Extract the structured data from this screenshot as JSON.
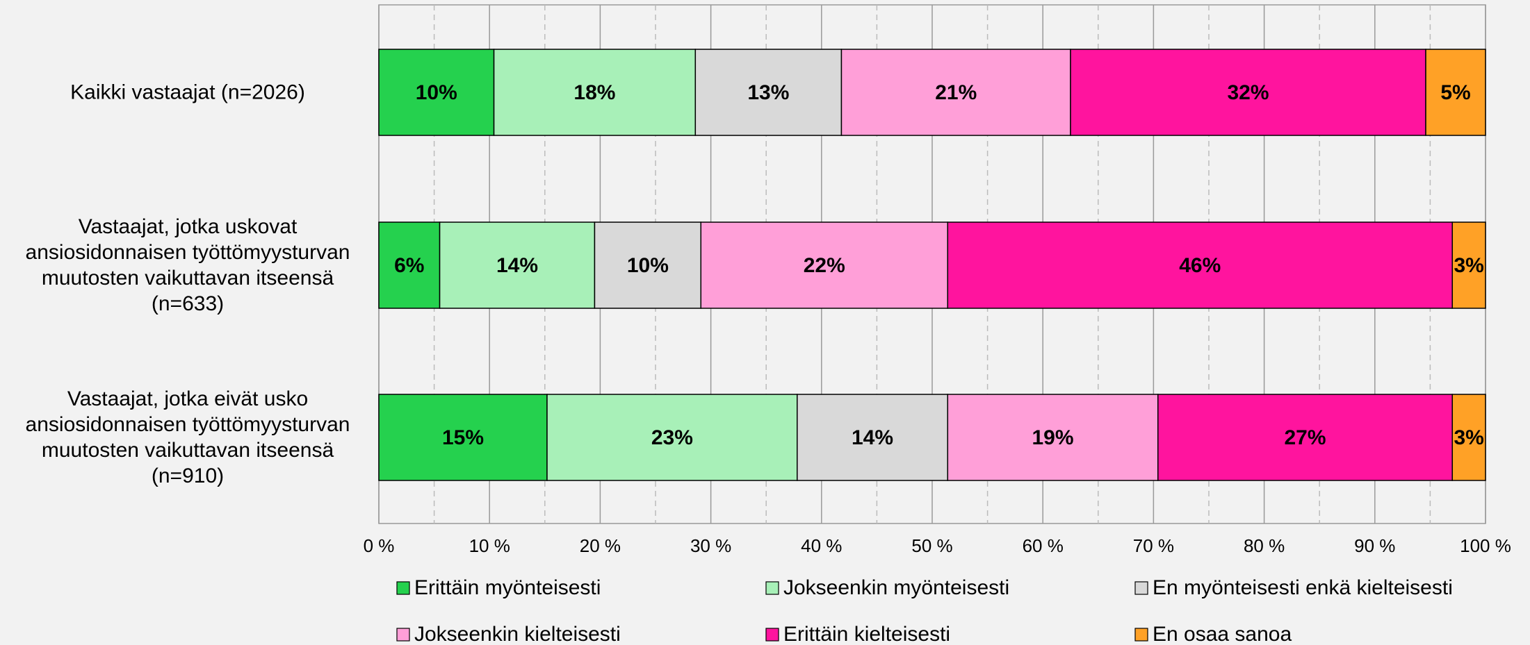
{
  "chart_data": {
    "type": "stacked_barh",
    "categories": [
      "Kaikki vastaajat (n=2026)",
      "Vastaajat, jotka uskovat\nansiosidonnaisen työttömyysturvan\nmuutosten vaikuttavan itseensä\n(n=633)",
      "Vastaajat, jotka eivät usko\nansiosidonnaisen työttömyysturvan\nmuutosten vaikuttavan itseensä\n(n=910)"
    ],
    "series": [
      {
        "name": "Erittäin myönteisesti",
        "color": "#25d14e",
        "values": [
          10.4,
          5.5,
          15.2
        ],
        "value_labels": [
          "10%",
          "6%",
          "15%"
        ]
      },
      {
        "name": "Jokseenkin myönteisesti",
        "color": "#a8f0b8",
        "values": [
          18.2,
          14.0,
          22.6
        ],
        "value_labels": [
          "18%",
          "14%",
          "23%"
        ]
      },
      {
        "name": "En myönteisesti enkä kielteisesti",
        "color": "#d9d9d9",
        "values": [
          13.2,
          9.6,
          13.6
        ],
        "value_labels": [
          "13%",
          "10%",
          "14%"
        ]
      },
      {
        "name": "Jokseenkin kielteisesti",
        "color": "#ff9fd8",
        "values": [
          20.7,
          22.3,
          19.0
        ],
        "value_labels": [
          "21%",
          "22%",
          "19%"
        ]
      },
      {
        "name": "Erittäin kielteisesti",
        "color": "#ff149e",
        "values": [
          32.1,
          45.6,
          26.6
        ],
        "value_labels": [
          "32%",
          "46%",
          "27%"
        ]
      },
      {
        "name": "En osaa sanoa",
        "color": "#ffa126",
        "values": [
          5.4,
          3.0,
          3.0
        ],
        "value_labels": [
          "5%",
          "3%",
          "3%"
        ]
      }
    ],
    "xlim": [
      0,
      100
    ],
    "xticks": [
      {
        "value": 0,
        "label": "0 %"
      },
      {
        "value": 10,
        "label": "10 %"
      },
      {
        "value": 20,
        "label": "20 %"
      },
      {
        "value": 30,
        "label": "30 %"
      },
      {
        "value": 40,
        "label": "40 %"
      },
      {
        "value": 50,
        "label": "50 %"
      },
      {
        "value": 60,
        "label": "60 %"
      },
      {
        "value": 70,
        "label": "70 %"
      },
      {
        "value": 80,
        "label": "80 %"
      },
      {
        "value": 90,
        "label": "90 %"
      },
      {
        "value": 100,
        "label": "100 %"
      }
    ],
    "grid": true
  }
}
